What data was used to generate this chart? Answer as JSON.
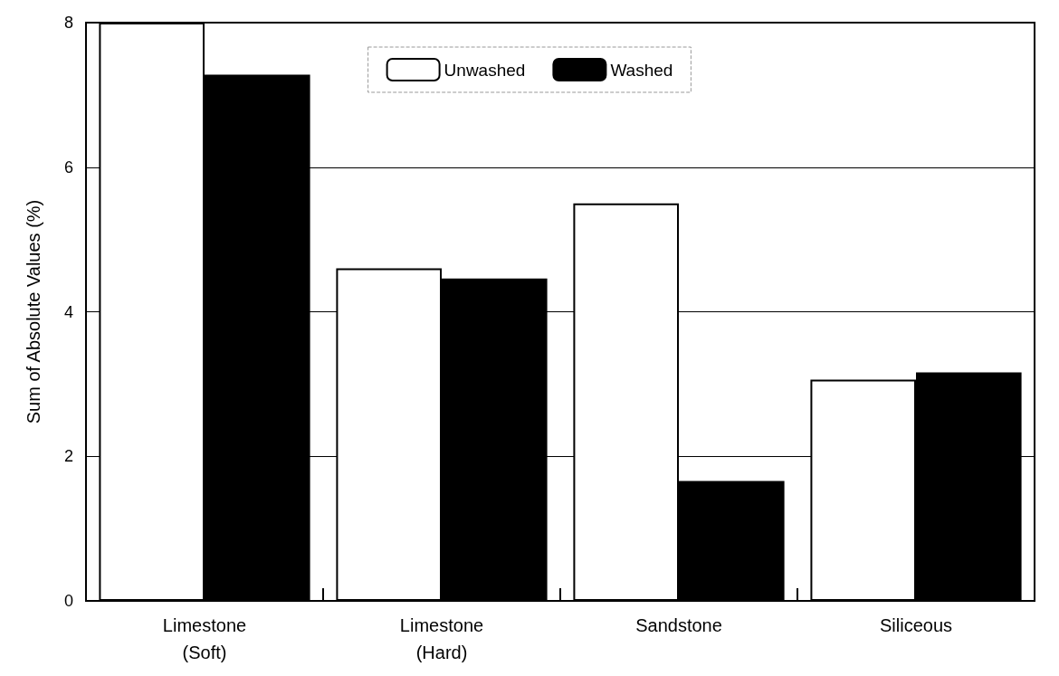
{
  "chart_data": {
    "type": "bar",
    "ylabel": "Sum of Absolute Values (%)",
    "categories": [
      "Limestone\n(Soft)",
      "Limestone\n(Hard)",
      "Sandstone",
      "Siliceous"
    ],
    "series": [
      {
        "name": "Unwashed",
        "color": "#ffffff",
        "values": [
          8,
          4.6,
          5.5,
          3.06
        ]
      },
      {
        "name": "Washed",
        "color": "#000000",
        "values": [
          7.28,
          4.46,
          1.66,
          3.16
        ]
      }
    ],
    "ylim": [
      0,
      8
    ],
    "yticks": [
      0,
      2,
      4,
      6,
      8
    ],
    "grid": "y",
    "legend": "top"
  }
}
